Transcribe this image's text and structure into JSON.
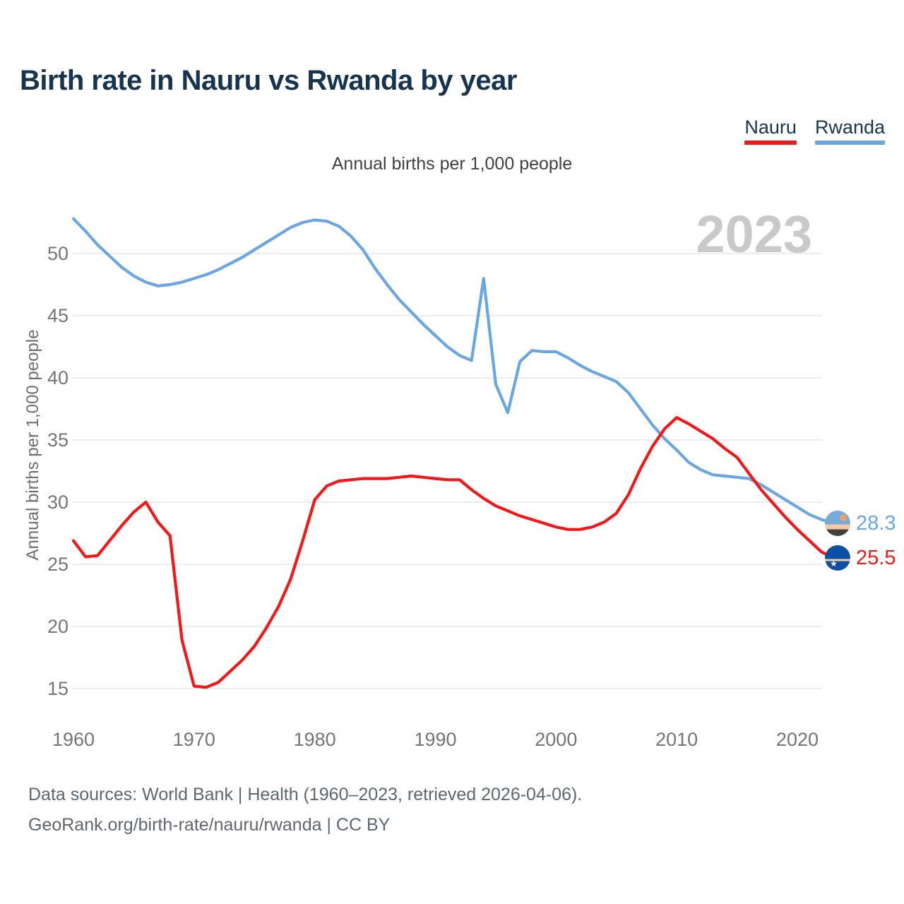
{
  "title": "Birth rate in Nauru vs Rwanda by year",
  "subtitle": "Annual births per 1,000 people",
  "watermark": "2023",
  "legend": [
    {
      "label": "Nauru",
      "color": "#f51717"
    },
    {
      "label": "Rwanda",
      "color": "#6aa7e2"
    }
  ],
  "y_axis": {
    "title": "Annual births per 1,000 people",
    "ticks": [
      15,
      20,
      25,
      30,
      35,
      40,
      45,
      50
    ]
  },
  "x_axis": {
    "ticks": [
      1960,
      1970,
      1980,
      1990,
      2000,
      2010,
      2020
    ]
  },
  "end_labels": [
    {
      "series": "Rwanda",
      "value": "28.3",
      "color": "#6aa7e2",
      "icon": "rwanda-flag"
    },
    {
      "series": "Nauru",
      "value": "25.5",
      "color": "#f51717",
      "icon": "nauru-flag"
    }
  ],
  "footer": {
    "line1": "Data sources: World Bank | Health (1960–2023, retrieved 2026-04-06).",
    "line2": "GeoRank.org/birth-rate/nauru/rwanda | CC BY"
  },
  "chart_data": {
    "type": "line",
    "title": "Birth rate in Nauru vs Rwanda by year",
    "subtitle": "Annual births per 1,000 people",
    "ylabel": "Annual births per 1,000 people",
    "xlabel": "",
    "ylim": [
      13,
      55
    ],
    "xlim": [
      1960,
      2023
    ],
    "grid": true,
    "legend_position": "top-right",
    "x": [
      1960,
      1961,
      1962,
      1963,
      1964,
      1965,
      1966,
      1967,
      1968,
      1969,
      1970,
      1971,
      1972,
      1973,
      1974,
      1975,
      1976,
      1977,
      1978,
      1979,
      1980,
      1981,
      1982,
      1983,
      1984,
      1985,
      1986,
      1987,
      1988,
      1989,
      1990,
      1991,
      1992,
      1993,
      1994,
      1995,
      1996,
      1997,
      1998,
      1999,
      2000,
      2001,
      2002,
      2003,
      2004,
      2005,
      2006,
      2007,
      2008,
      2009,
      2010,
      2011,
      2012,
      2013,
      2014,
      2015,
      2016,
      2017,
      2018,
      2019,
      2020,
      2021,
      2022,
      2023
    ],
    "series": [
      {
        "name": "Rwanda",
        "color": "#6aa7e2",
        "values": [
          52.8,
          51.8,
          50.7,
          49.8,
          48.9,
          48.2,
          47.7,
          47.4,
          47.5,
          47.7,
          48.0,
          48.3,
          48.7,
          49.2,
          49.7,
          50.3,
          50.9,
          51.5,
          52.1,
          52.5,
          52.7,
          52.6,
          52.2,
          51.4,
          50.3,
          48.8,
          47.5,
          46.3,
          45.3,
          44.3,
          43.4,
          42.5,
          41.8,
          41.4,
          48.0,
          39.5,
          37.2,
          41.3,
          42.2,
          42.1,
          42.1,
          41.6,
          41.0,
          40.5,
          40.1,
          39.7,
          38.8,
          37.5,
          36.2,
          35.1,
          34.2,
          33.2,
          32.6,
          32.2,
          32.1,
          32.0,
          31.9,
          31.4,
          30.8,
          30.2,
          29.6,
          29.0,
          28.6,
          28.3
        ]
      },
      {
        "name": "Nauru",
        "color": "#f51717",
        "values": [
          26.9,
          25.6,
          25.7,
          26.9,
          28.1,
          29.2,
          30.0,
          28.4,
          27.3,
          18.9,
          15.2,
          15.1,
          15.5,
          16.4,
          17.3,
          18.4,
          19.9,
          21.6,
          23.8,
          26.9,
          30.2,
          31.3,
          31.7,
          31.8,
          31.9,
          31.9,
          31.9,
          32.0,
          32.1,
          32.0,
          31.9,
          31.8,
          31.8,
          31.0,
          30.3,
          29.7,
          29.3,
          28.9,
          28.6,
          28.3,
          28.0,
          27.8,
          27.8,
          28.0,
          28.4,
          29.1,
          30.6,
          32.7,
          34.5,
          35.9,
          36.8,
          36.3,
          35.7,
          35.1,
          34.3,
          33.6,
          32.3,
          31.0,
          29.9,
          28.8,
          27.8,
          26.9,
          26.0,
          25.5
        ]
      }
    ]
  }
}
